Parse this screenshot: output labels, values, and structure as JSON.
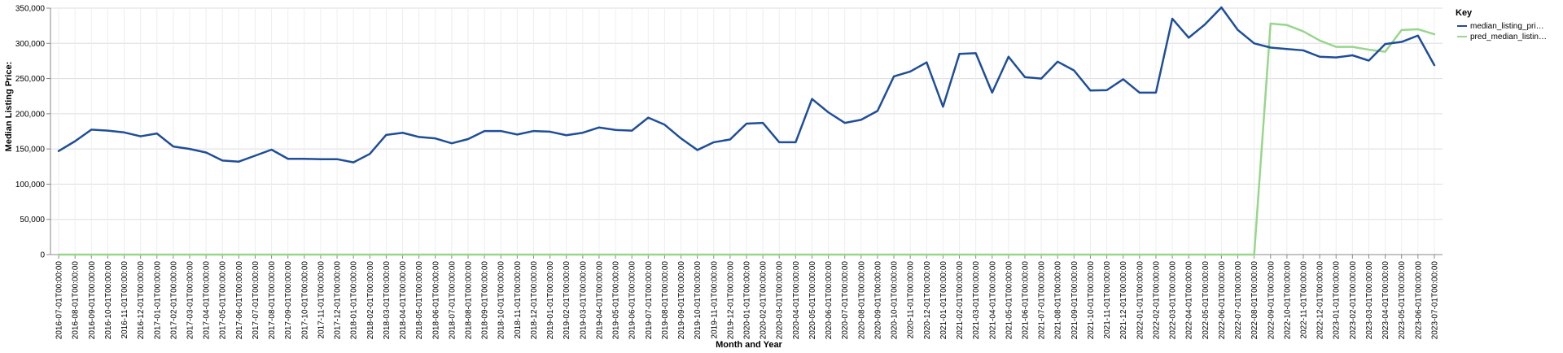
{
  "chart_data": {
    "type": "line",
    "xlabel": "Month and Year",
    "ylabel": "Median Listing Price:",
    "ylim": [
      0,
      350000
    ],
    "yticks": [
      "0",
      "50,000",
      "100,000",
      "150,000",
      "200,000",
      "250,000",
      "300,000",
      "350,000"
    ],
    "grid": true,
    "legend": {
      "title": "Key",
      "placement": "top-right"
    },
    "x": [
      "2016-07-01T00:00:00",
      "2016-08-01T00:00:00",
      "2016-09-01T00:00:00",
      "2016-10-01T00:00:00",
      "2016-11-01T00:00:00",
      "2016-12-01T00:00:00",
      "2017-01-01T00:00:00",
      "2017-02-01T00:00:00",
      "2017-03-01T00:00:00",
      "2017-04-01T00:00:00",
      "2017-05-01T00:00:00",
      "2017-06-01T00:00:00",
      "2017-07-01T00:00:00",
      "2017-08-01T00:00:00",
      "2017-09-01T00:00:00",
      "2017-10-01T00:00:00",
      "2017-11-01T00:00:00",
      "2017-12-01T00:00:00",
      "2018-01-01T00:00:00",
      "2018-02-01T00:00:00",
      "2018-03-01T00:00:00",
      "2018-04-01T00:00:00",
      "2018-05-01T00:00:00",
      "2018-06-01T00:00:00",
      "2018-07-01T00:00:00",
      "2018-08-01T00:00:00",
      "2018-09-01T00:00:00",
      "2018-10-01T00:00:00",
      "2018-11-01T00:00:00",
      "2018-12-01T00:00:00",
      "2019-01-01T00:00:00",
      "2019-02-01T00:00:00",
      "2019-03-01T00:00:00",
      "2019-04-01T00:00:00",
      "2019-05-01T00:00:00",
      "2019-06-01T00:00:00",
      "2019-07-01T00:00:00",
      "2019-08-01T00:00:00",
      "2019-09-01T00:00:00",
      "2019-10-01T00:00:00",
      "2019-11-01T00:00:00",
      "2019-12-01T00:00:00",
      "2020-01-01T00:00:00",
      "2020-02-01T00:00:00",
      "2020-03-01T00:00:00",
      "2020-04-01T00:00:00",
      "2020-05-01T00:00:00",
      "2020-06-01T00:00:00",
      "2020-07-01T00:00:00",
      "2020-08-01T00:00:00",
      "2020-09-01T00:00:00",
      "2020-10-01T00:00:00",
      "2020-11-01T00:00:00",
      "2020-12-01T00:00:00",
      "2021-01-01T00:00:00",
      "2021-02-01T00:00:00",
      "2021-03-01T00:00:00",
      "2021-04-01T00:00:00",
      "2021-05-01T00:00:00",
      "2021-06-01T00:00:00",
      "2021-07-01T00:00:00",
      "2021-08-01T00:00:00",
      "2021-09-01T00:00:00",
      "2021-10-01T00:00:00",
      "2021-11-01T00:00:00",
      "2021-12-01T00:00:00",
      "2022-01-01T00:00:00",
      "2022-02-01T00:00:00",
      "2022-03-01T00:00:00",
      "2022-04-01T00:00:00",
      "2022-05-01T00:00:00",
      "2022-06-01T00:00:00",
      "2022-07-01T00:00:00",
      "2022-08-01T00:00:00",
      "2022-09-01T00:00:00",
      "2022-10-01T00:00:00",
      "2022-11-01T00:00:00",
      "2022-12-01T00:00:00",
      "2023-01-01T00:00:00",
      "2023-02-01T00:00:00",
      "2023-03-01T00:00:00",
      "2023-04-01T00:00:00",
      "2023-05-01T00:00:00",
      "2023-06-01T00:00:00",
      "2023-07-01T00:00:00"
    ],
    "series": [
      {
        "name": "median_listing_pri…",
        "color": "#1f4e99",
        "values": [
          147000,
          161000,
          177500,
          176000,
          173500,
          168000,
          172000,
          153500,
          150000,
          145000,
          133500,
          132000,
          140500,
          149000,
          136000,
          136000,
          135500,
          135500,
          131000,
          143000,
          170000,
          173000,
          167000,
          165000,
          158000,
          164000,
          175500,
          175500,
          170500,
          175500,
          174500,
          169500,
          173000,
          180500,
          177000,
          176000,
          194500,
          184500,
          165000,
          148500,
          159500,
          163500,
          186000,
          187000,
          159500,
          159500,
          221000,
          202000,
          187000,
          191500,
          204000,
          253000,
          260000,
          273000,
          210000,
          285000,
          286000,
          230000,
          281000,
          252000,
          250000,
          274000,
          261500,
          233000,
          233500,
          249000,
          230000,
          230000,
          335000,
          308000,
          327000,
          351000,
          319000,
          300000,
          294000,
          292000,
          290000,
          281000,
          280000,
          283000,
          275500,
          299000,
          302000,
          311000,
          269000
        ]
      },
      {
        "name": "pred_median_listin…",
        "color": "#98d68c",
        "values": [
          0,
          0,
          0,
          0,
          0,
          0,
          0,
          0,
          0,
          0,
          0,
          0,
          0,
          0,
          0,
          0,
          0,
          0,
          0,
          0,
          0,
          0,
          0,
          0,
          0,
          0,
          0,
          0,
          0,
          0,
          0,
          0,
          0,
          0,
          0,
          0,
          0,
          0,
          0,
          0,
          0,
          0,
          0,
          0,
          0,
          0,
          0,
          0,
          0,
          0,
          0,
          0,
          0,
          0,
          0,
          0,
          0,
          0,
          0,
          0,
          0,
          0,
          0,
          0,
          0,
          0,
          0,
          0,
          0,
          0,
          0,
          0,
          0,
          0,
          328000,
          326000,
          317000,
          304000,
          295000,
          295000,
          291000,
          288000,
          319000,
          320000,
          313000
        ]
      }
    ]
  }
}
